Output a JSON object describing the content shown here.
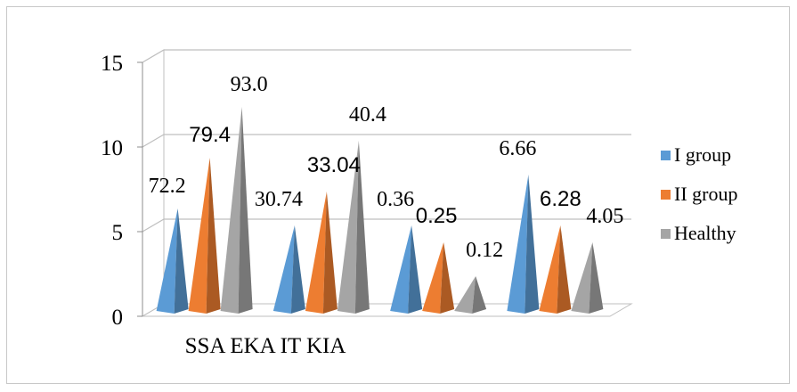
{
  "chart_data": {
    "type": "bar",
    "style": "3d-cone",
    "x_axis_text": "SSA EKA IT KIA",
    "categories": [
      "SSA",
      "EKA",
      "IT",
      "KIA"
    ],
    "yticks": [
      "0",
      "5",
      "10",
      "15"
    ],
    "ylim": [
      0,
      15
    ],
    "grid": true,
    "legend_position": "right",
    "series": [
      {
        "name": "I group",
        "color": "#5B9BD5",
        "values": [
          6,
          5,
          5,
          8
        ],
        "labels": [
          "72.2",
          "30.74",
          "0.36",
          "6.66"
        ]
      },
      {
        "name": "II group",
        "color": "#ED7D31",
        "values": [
          9,
          7,
          4,
          5
        ],
        "labels": [
          "79.4",
          "33.04",
          "0.25",
          "6.28"
        ]
      },
      {
        "name": "Healthy",
        "color": "#A5A5A5",
        "values": [
          12,
          10,
          2,
          4
        ],
        "labels": [
          "93.0",
          "40.4",
          "0.12",
          "4.05"
        ]
      }
    ]
  }
}
